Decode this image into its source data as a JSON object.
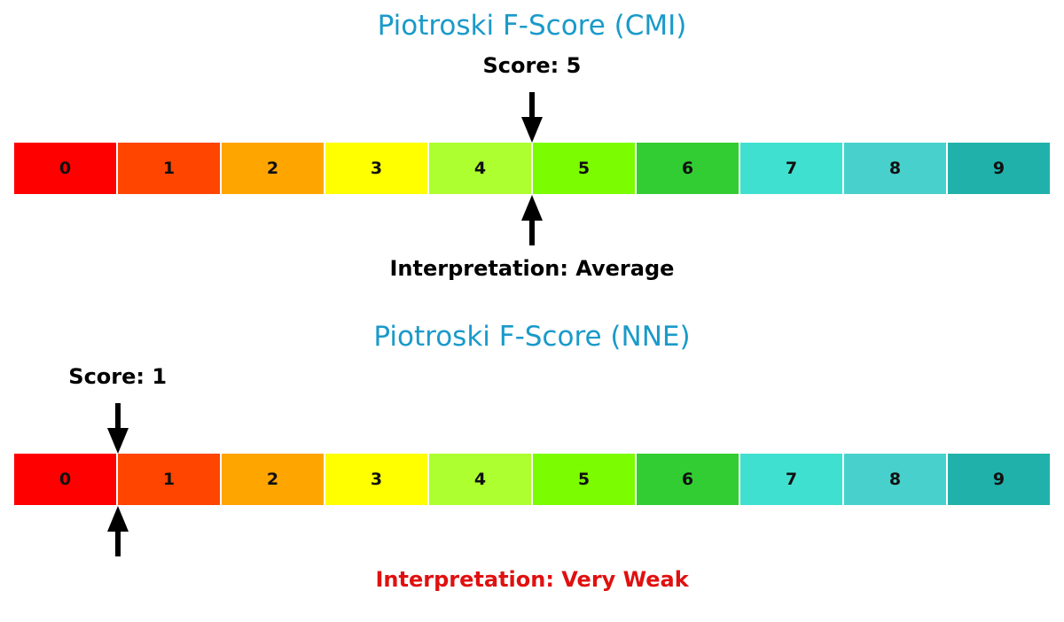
{
  "colors": {
    "title": "#1a9ac9",
    "arrow": "#000000",
    "interpretation_neutral": "#000000",
    "interpretation_weak": "#e01010",
    "cell_divider": "#ffffff"
  },
  "icons": {
    "pointer_top": "arrow-down-icon",
    "pointer_bottom": "arrow-up-icon"
  },
  "chart_data": [
    {
      "type": "gauge",
      "title": "Piotroski F-Score (CMI)",
      "score_text": "Score: 5",
      "score": 5,
      "interpretation_text": "Interpretation: Average",
      "interpretation_color": "#000000",
      "scale_min": 0,
      "scale_max": 9,
      "categories": [
        "0",
        "1",
        "2",
        "3",
        "4",
        "5",
        "6",
        "7",
        "8",
        "9"
      ],
      "segment_colors": [
        "#ff0000",
        "#ff4500",
        "#ffa500",
        "#ffff00",
        "#adff2f",
        "#7cfc00",
        "#32cd32",
        "#40e0d0",
        "#48d1cc",
        "#20b2aa"
      ]
    },
    {
      "type": "gauge",
      "title": "Piotroski F-Score (NNE)",
      "score_text": "Score: 1",
      "score": 1,
      "interpretation_text": "Interpretation: Very Weak",
      "interpretation_color": "#e01010",
      "scale_min": 0,
      "scale_max": 9,
      "categories": [
        "0",
        "1",
        "2",
        "3",
        "4",
        "5",
        "6",
        "7",
        "8",
        "9"
      ],
      "segment_colors": [
        "#ff0000",
        "#ff4500",
        "#ffa500",
        "#ffff00",
        "#adff2f",
        "#7cfc00",
        "#32cd32",
        "#40e0d0",
        "#48d1cc",
        "#20b2aa"
      ]
    }
  ]
}
